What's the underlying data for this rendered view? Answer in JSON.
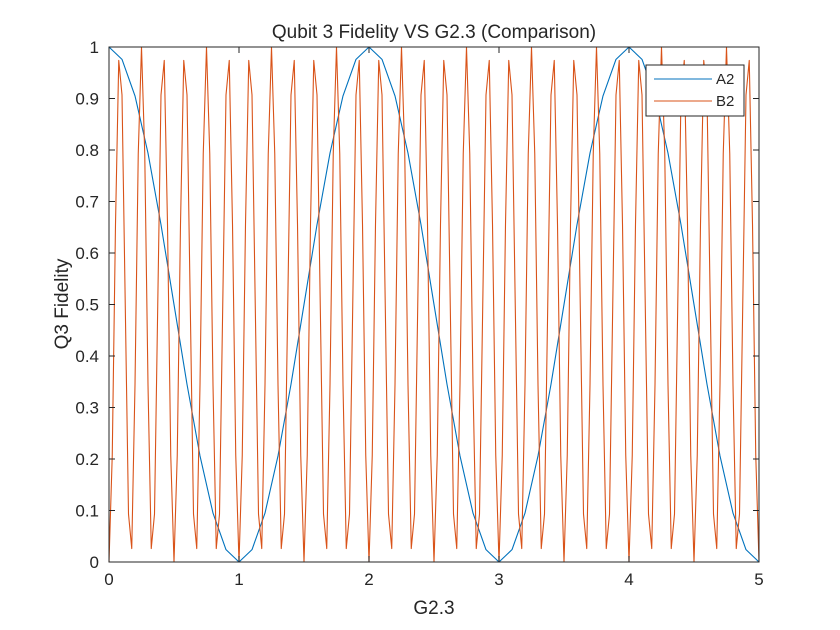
{
  "chart_data": {
    "type": "line",
    "title": "Qubit 3 Fidelity VS G2.3 (Comparison)",
    "xlabel": "G2.3",
    "ylabel": "Q3 Fidelity",
    "xlim": [
      0,
      5
    ],
    "ylim": [
      0,
      1
    ],
    "x_ticks": [
      "0",
      "1",
      "2",
      "3",
      "4",
      "5"
    ],
    "y_ticks": [
      "0",
      "0.1",
      "0.2",
      "0.3",
      "0.4",
      "0.5",
      "0.6",
      "0.7",
      "0.8",
      "0.9",
      "1"
    ],
    "grid": false,
    "legend": {
      "position": "top-right",
      "entries": [
        "A2",
        "B2"
      ]
    },
    "series": [
      {
        "name": "A2",
        "color": "#0072BD",
        "x": [
          0,
          0.1,
          0.2,
          0.3,
          0.4,
          0.5,
          0.6,
          0.7,
          0.8,
          0.9,
          1.0,
          1.1,
          1.2,
          1.3,
          1.4,
          1.5,
          1.6,
          1.7,
          1.8,
          1.9,
          2.0,
          2.1,
          2.2,
          2.3,
          2.4,
          2.5,
          2.6,
          2.7,
          2.8,
          2.9,
          3.0,
          3.1,
          3.2,
          3.3,
          3.4,
          3.5,
          3.6,
          3.7,
          3.8,
          3.9,
          4.0,
          4.1,
          4.2,
          4.3,
          4.4,
          4.5,
          4.6,
          4.7,
          4.8,
          4.9,
          5.0
        ],
        "y": [
          1.0,
          0.976,
          0.905,
          0.794,
          0.655,
          0.5,
          0.345,
          0.206,
          0.095,
          0.024,
          0.0,
          0.024,
          0.095,
          0.206,
          0.345,
          0.5,
          0.655,
          0.794,
          0.905,
          0.976,
          1.0,
          0.976,
          0.905,
          0.794,
          0.655,
          0.5,
          0.345,
          0.206,
          0.095,
          0.024,
          0.0,
          0.024,
          0.095,
          0.206,
          0.345,
          0.5,
          0.655,
          0.794,
          0.905,
          0.976,
          1.0,
          0.976,
          0.905,
          0.794,
          0.655,
          0.5,
          0.345,
          0.206,
          0.095,
          0.024,
          0.0
        ]
      },
      {
        "name": "B2",
        "color": "#D95319",
        "x": [
          0,
          0.025,
          0.05,
          0.075,
          0.1,
          0.125,
          0.15,
          0.175,
          0.2,
          0.225,
          0.25,
          0.275,
          0.3,
          0.325,
          0.35,
          0.375,
          0.4,
          0.425,
          0.45,
          0.475,
          0.5,
          0.525,
          0.55,
          0.575,
          0.6,
          0.625,
          0.65,
          0.675,
          0.7,
          0.725,
          0.75,
          0.775,
          0.8,
          0.825,
          0.85,
          0.875,
          0.9,
          0.925,
          0.95,
          0.975,
          1.0,
          1.025,
          1.05,
          1.075,
          1.1,
          1.125,
          1.15,
          1.175,
          1.2,
          1.225,
          1.25,
          1.275,
          1.3,
          1.325,
          1.35,
          1.375,
          1.4,
          1.425,
          1.45,
          1.475,
          1.5,
          1.525,
          1.55,
          1.575,
          1.6,
          1.625,
          1.65,
          1.675,
          1.7,
          1.725,
          1.75,
          1.775,
          1.8,
          1.825,
          1.85,
          1.875,
          1.9,
          1.925,
          1.95,
          1.975,
          2.0,
          2.025,
          2.05,
          2.075,
          2.1,
          2.125,
          2.15,
          2.175,
          2.2,
          2.225,
          2.25,
          2.275,
          2.3,
          2.325,
          2.35,
          2.375,
          2.4,
          2.425,
          2.45,
          2.475,
          2.5,
          2.525,
          2.55,
          2.575,
          2.6,
          2.625,
          2.65,
          2.675,
          2.7,
          2.725,
          2.75,
          2.775,
          2.8,
          2.825,
          2.85,
          2.875,
          2.9,
          2.925,
          2.95,
          2.975,
          3.0,
          3.025,
          3.05,
          3.075,
          3.1,
          3.125,
          3.15,
          3.175,
          3.2,
          3.225,
          3.25,
          3.275,
          3.3,
          3.325,
          3.35,
          3.375,
          3.4,
          3.425,
          3.45,
          3.475,
          3.5,
          3.525,
          3.55,
          3.575,
          3.6,
          3.625,
          3.65,
          3.675,
          3.7,
          3.725,
          3.75,
          3.775,
          3.8,
          3.825,
          3.85,
          3.875,
          3.9,
          3.925,
          3.95,
          3.975,
          4.0,
          4.025,
          4.05,
          4.075,
          4.1,
          4.125,
          4.15,
          4.175,
          4.2,
          4.225,
          4.25,
          4.275,
          4.3,
          4.325,
          4.35,
          4.375,
          4.4,
          4.425,
          4.45,
          4.475,
          4.5,
          4.525,
          4.55,
          4.575,
          4.6,
          4.625,
          4.65,
          4.675,
          4.7,
          4.725,
          4.75,
          4.775,
          4.8,
          4.825,
          4.85,
          4.875,
          4.9,
          4.925,
          4.95,
          4.975,
          5.0
        ],
        "y": [
          0.0,
          0.207,
          0.656,
          0.974,
          0.907,
          0.5,
          0.093,
          0.026,
          0.344,
          0.793,
          1.0,
          0.793,
          0.344,
          0.026,
          0.093,
          0.5,
          0.907,
          0.974,
          0.656,
          0.207,
          0.0,
          0.207,
          0.656,
          0.974,
          0.907,
          0.5,
          0.093,
          0.026,
          0.344,
          0.793,
          1.0,
          0.793,
          0.344,
          0.026,
          0.093,
          0.5,
          0.907,
          0.974,
          0.656,
          0.207,
          0.0,
          0.207,
          0.656,
          0.974,
          0.907,
          0.5,
          0.093,
          0.026,
          0.344,
          0.793,
          1.0,
          0.793,
          0.344,
          0.026,
          0.093,
          0.5,
          0.907,
          0.974,
          0.656,
          0.207,
          0.0,
          0.207,
          0.656,
          0.974,
          0.907,
          0.5,
          0.093,
          0.026,
          0.344,
          0.793,
          1.0,
          0.793,
          0.344,
          0.026,
          0.093,
          0.5,
          0.907,
          0.974,
          0.656,
          0.207,
          0.0,
          0.207,
          0.656,
          0.974,
          0.907,
          0.5,
          0.093,
          0.026,
          0.344,
          0.793,
          1.0,
          0.793,
          0.344,
          0.026,
          0.093,
          0.5,
          0.907,
          0.974,
          0.656,
          0.207,
          0.0,
          0.207,
          0.656,
          0.974,
          0.907,
          0.5,
          0.093,
          0.026,
          0.344,
          0.793,
          1.0,
          0.793,
          0.344,
          0.026,
          0.093,
          0.5,
          0.907,
          0.974,
          0.656,
          0.207,
          0.0,
          0.207,
          0.656,
          0.974,
          0.907,
          0.5,
          0.093,
          0.026,
          0.344,
          0.793,
          1.0,
          0.793,
          0.344,
          0.026,
          0.093,
          0.5,
          0.907,
          0.974,
          0.656,
          0.207,
          0.0,
          0.207,
          0.656,
          0.974,
          0.907,
          0.5,
          0.093,
          0.026,
          0.344,
          0.793,
          1.0,
          0.793,
          0.344,
          0.026,
          0.093,
          0.5,
          0.907,
          0.974,
          0.656,
          0.207,
          0.0,
          0.207,
          0.656,
          0.974,
          0.907,
          0.5,
          0.093,
          0.026,
          0.344,
          0.793,
          1.0,
          0.793,
          0.344,
          0.026,
          0.093,
          0.5,
          0.907,
          0.974,
          0.656,
          0.207,
          0.0,
          0.207,
          0.656,
          0.974,
          0.907,
          0.5,
          0.093,
          0.026,
          0.344,
          0.793,
          1.0,
          0.793,
          0.344,
          0.026,
          0.093,
          0.5,
          0.907,
          0.974,
          0.656,
          0.207,
          0.0
        ]
      }
    ]
  }
}
